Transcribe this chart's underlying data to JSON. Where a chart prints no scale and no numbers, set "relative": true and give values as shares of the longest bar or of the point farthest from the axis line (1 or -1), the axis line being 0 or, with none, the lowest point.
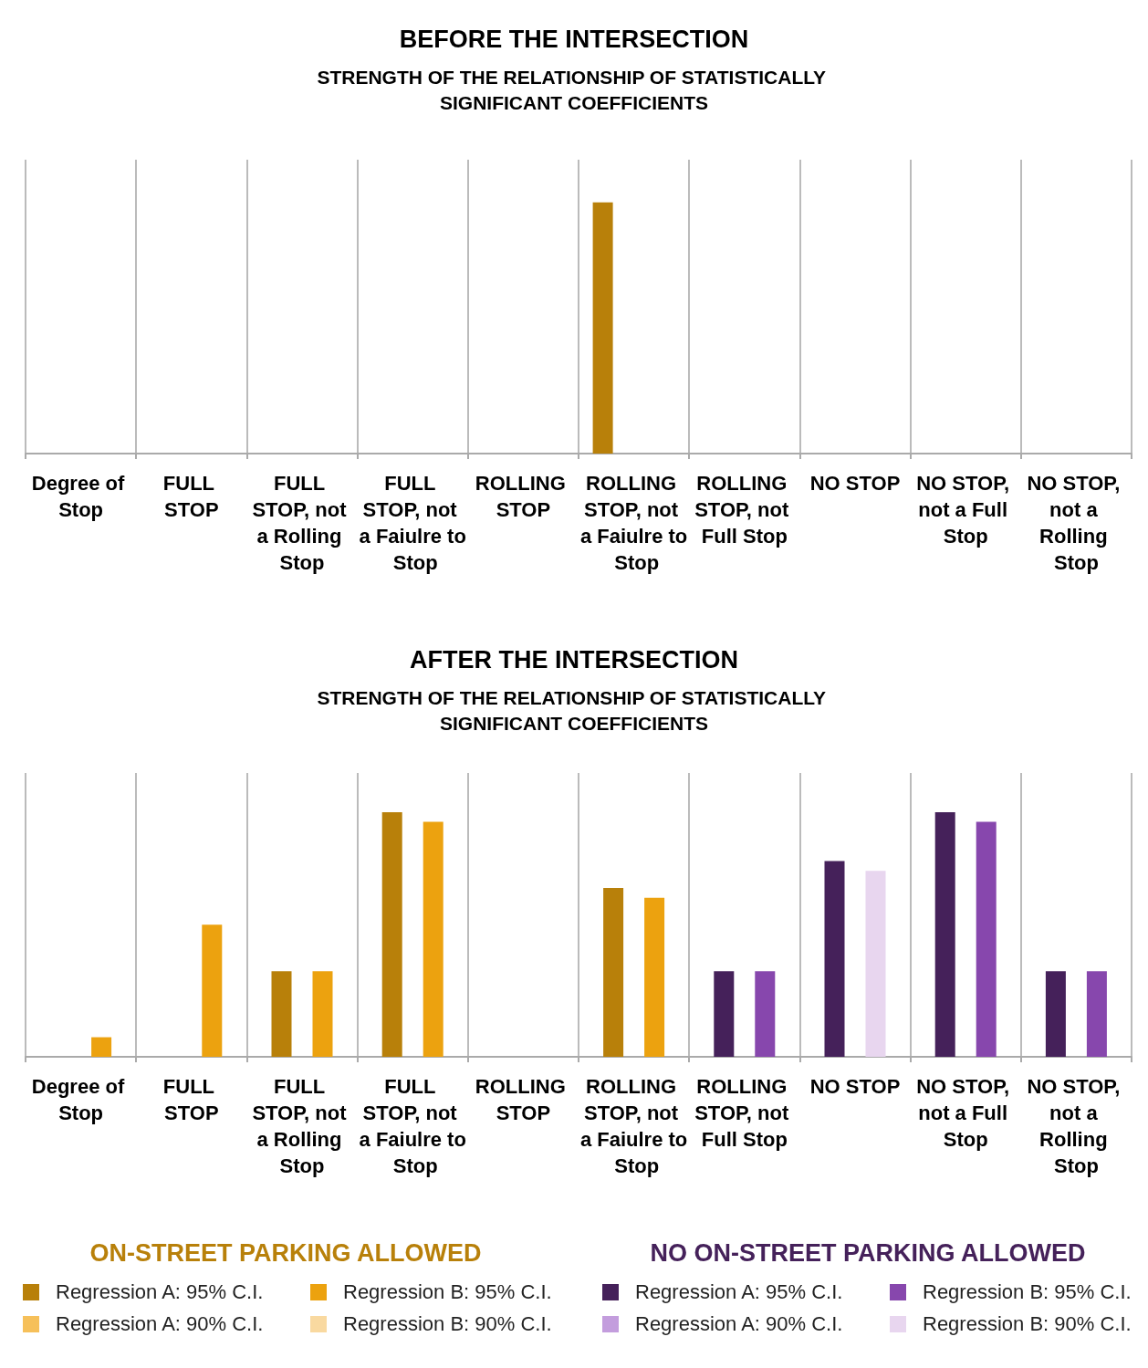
{
  "chart_data": [
    {
      "type": "bar",
      "title": "BEFORE THE INTERSECTION",
      "subtitle": "STRENGTH OF THE RELATIONSHIP OF STATISTICALLY SIGNIFICANT COEFFICIENTS",
      "relative": true,
      "grid": "x",
      "categories": [
        "Degree of Stop",
        "FULL STOP",
        "FULL STOP, not a Rolling Stop",
        "FULL STOP, not a Faiulre to Stop",
        "ROLLING STOP",
        "ROLLING STOP, not a Faiulre to Stop",
        "ROLLING STOP, not Full Stop",
        "NO STOP",
        "NO STOP, not a Full Stop",
        "NO STOP, not a Rolling Stop"
      ],
      "series": [
        {
          "color": "#b8800a",
          "values": [
            null,
            null,
            null,
            null,
            null,
            1,
            null,
            null,
            null,
            null
          ]
        }
      ]
    },
    {
      "type": "bar",
      "title": "AFTER THE INTERSECTION",
      "subtitle": "STRENGTH OF THE RELATIONSHIP OF STATISTICALLY SIGNIFICANT COEFFICIENTS",
      "relative": true,
      "grid": "x",
      "legend": "bottom",
      "annotations": [
        "ON-STREET PARKING ALLOWED",
        "NO ON-STREET PARKING ALLOWED"
      ],
      "categories": [
        "Degree of Stop",
        "FULL STOP",
        "FULL STOP, not a Rolling Stop",
        "FULL STOP, not a Faiulre to Stop",
        "ROLLING STOP",
        "ROLLING STOP, not a Faiulre to Stop",
        "ROLLING STOP, not Full Stop",
        "NO STOP",
        "NO STOP, not a Full Stop",
        "NO STOP, not a Rolling Stop"
      ],
      "series": [
        {
          "name": "Regression A: 95% C.I.",
          "color": "#b8800a",
          "values": [
            null,
            null,
            0.35,
            1,
            null,
            0.69,
            null,
            null,
            null,
            null
          ]
        },
        {
          "name": "Regression B: 95% C.I.",
          "color": "#eca20f",
          "values": [
            0.08,
            0.54,
            0.35,
            0.96,
            null,
            0.65,
            null,
            null,
            null,
            null
          ]
        },
        {
          "name": "Regression A: 90% C.I.",
          "color": "#f6c05a",
          "values": [
            null,
            null,
            null,
            null,
            null,
            null,
            null,
            null,
            null,
            null
          ]
        },
        {
          "name": "Regression B: 90% C.I.",
          "color": "#f9d9a0",
          "values": [
            null,
            null,
            null,
            null,
            null,
            null,
            null,
            null,
            null,
            null
          ]
        },
        {
          "name": "Regression A: 95% C.I.",
          "color": "#45215a",
          "values": [
            null,
            null,
            null,
            null,
            null,
            null,
            0.35,
            0.8,
            1,
            0.35
          ]
        },
        {
          "name": "Regression B: 95% C.I.",
          "color": "#8747ad",
          "values": [
            null,
            null,
            null,
            null,
            null,
            null,
            0.35,
            null,
            0.96,
            0.35
          ]
        },
        {
          "name": "Regression A: 90% C.I.",
          "color": "#c39ddd",
          "values": [
            null,
            null,
            null,
            null,
            null,
            null,
            null,
            null,
            null,
            null
          ]
        },
        {
          "name": "Regression B: 90% C.I.",
          "color": "#e8d6ef",
          "values": [
            null,
            null,
            null,
            null,
            null,
            null,
            null,
            0.76,
            null,
            null
          ]
        }
      ]
    }
  ]
}
